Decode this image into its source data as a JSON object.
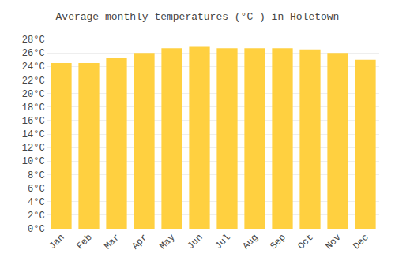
{
  "chart_data": {
    "type": "bar",
    "title": "Average monthly temperatures (°C ) in Holetown",
    "categories": [
      "Jan",
      "Feb",
      "Mar",
      "Apr",
      "May",
      "Jun",
      "Jul",
      "Aug",
      "Sep",
      "Oct",
      "Nov",
      "Dec"
    ],
    "values": [
      24.5,
      24.5,
      25.2,
      26.0,
      26.7,
      27.0,
      26.7,
      26.7,
      26.7,
      26.5,
      26.0,
      25.0
    ],
    "color": "#FFD040",
    "ylim": [
      0,
      28
    ],
    "yticks": [
      {
        "value": 0,
        "label": "0°C"
      },
      {
        "value": 2,
        "label": "2°C"
      },
      {
        "value": 4,
        "label": "4°C"
      },
      {
        "value": 6,
        "label": "6°C"
      },
      {
        "value": 8,
        "label": "8°C"
      },
      {
        "value": 10,
        "label": "10°C"
      },
      {
        "value": 12,
        "label": "12°C"
      },
      {
        "value": 14,
        "label": "14°C"
      },
      {
        "value": 16,
        "label": "16°C"
      },
      {
        "value": 18,
        "label": "18°C"
      },
      {
        "value": 20,
        "label": "20°C"
      },
      {
        "value": 22,
        "label": "22°C"
      },
      {
        "value": 24,
        "label": "24°C"
      },
      {
        "value": 26,
        "label": "26°C"
      },
      {
        "value": 28,
        "label": "28°C"
      }
    ],
    "grid": true
  }
}
